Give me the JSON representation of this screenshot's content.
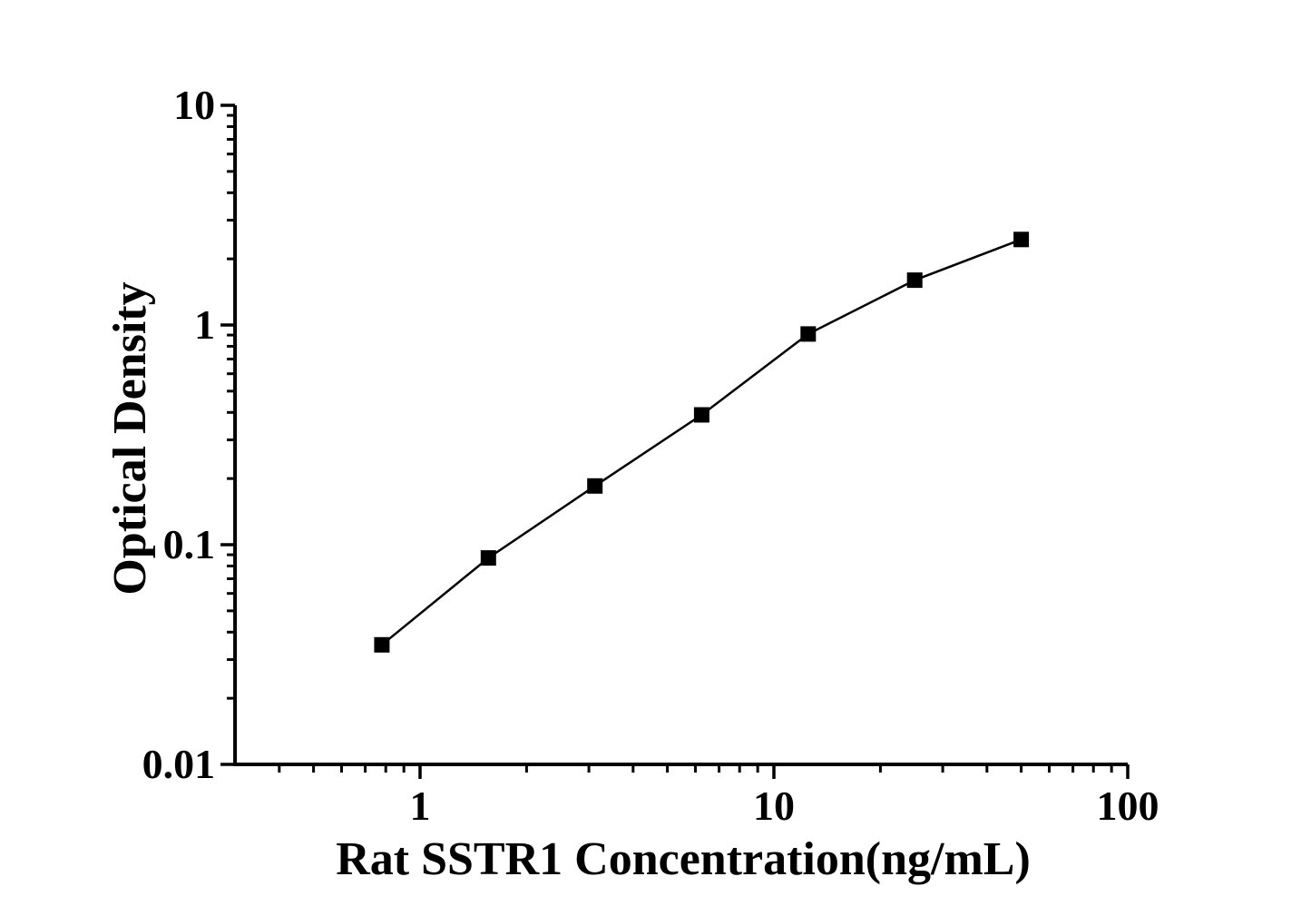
{
  "page": {
    "background": "#ffffff",
    "ink_color": "#000000"
  },
  "chart_data": {
    "type": "line",
    "subtype": "elisa-standard-curve (scatter + connecting line)",
    "title": "",
    "xlabel": "Rat SSTR1 Concentration(ng/mL)",
    "ylabel": "Optical Density",
    "x_scale": "log",
    "y_scale": "log",
    "xlim": [
      0.3,
      100
    ],
    "ylim": [
      0.01,
      10
    ],
    "grid": false,
    "legend": "none",
    "line_color": "#000000",
    "marker": "filled-square",
    "marker_color": "#000000",
    "x": [
      0.78,
      1.56,
      3.12,
      6.25,
      12.5,
      25,
      50
    ],
    "y": [
      0.035,
      0.087,
      0.185,
      0.39,
      0.91,
      1.6,
      2.45
    ],
    "x_major_ticks": {
      "values": [
        1,
        10,
        100
      ],
      "labels": [
        "1",
        "10",
        "100"
      ]
    },
    "y_major_ticks": {
      "values": [
        0.01,
        0.1,
        1,
        10
      ],
      "labels": [
        "0.01",
        "0.1",
        "1",
        "10"
      ]
    },
    "x_minor_ticks": [
      0.4,
      0.5,
      0.6,
      0.7,
      0.8,
      0.9,
      2,
      3,
      4,
      5,
      6,
      7,
      8,
      9,
      20,
      30,
      40,
      50,
      60,
      70,
      80,
      90
    ],
    "y_minor_ticks": [
      0.02,
      0.03,
      0.04,
      0.05,
      0.06,
      0.07,
      0.08,
      0.09,
      0.2,
      0.3,
      0.4,
      0.5,
      0.6,
      0.7,
      0.8,
      0.9,
      2,
      3,
      4,
      5,
      6,
      7,
      8,
      9
    ]
  }
}
